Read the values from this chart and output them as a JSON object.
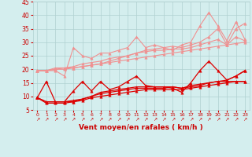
{
  "x": [
    0,
    1,
    2,
    3,
    4,
    5,
    6,
    7,
    8,
    9,
    10,
    11,
    12,
    13,
    14,
    15,
    16,
    17,
    18,
    19,
    20,
    21,
    22,
    23
  ],
  "series": [
    {
      "name": "line1_light_volatile",
      "color": "#f09090",
      "linewidth": 0.8,
      "marker": "^",
      "markersize": 2.5,
      "y": [
        19.5,
        19.5,
        19.5,
        17.5,
        28.0,
        25.0,
        24.0,
        26.0,
        26.0,
        27.0,
        28.0,
        32.0,
        28.0,
        29.0,
        28.0,
        27.0,
        29.0,
        30.0,
        36.0,
        41.0,
        36.0,
        30.5,
        37.5,
        31.0
      ]
    },
    {
      "name": "line2_light",
      "color": "#f09090",
      "linewidth": 0.8,
      "marker": "^",
      "markersize": 2.5,
      "y": [
        19.5,
        19.5,
        20.5,
        20.5,
        20.5,
        21.0,
        21.5,
        22.0,
        23.0,
        24.0,
        25.0,
        26.0,
        27.0,
        27.5,
        28.0,
        28.5,
        28.0,
        29.0,
        30.0,
        32.0,
        35.0,
        29.0,
        35.0,
        37.0
      ]
    },
    {
      "name": "line3_light",
      "color": "#f09090",
      "linewidth": 0.8,
      "marker": "^",
      "markersize": 2.5,
      "y": [
        19.5,
        19.5,
        20.0,
        20.5,
        21.0,
        22.0,
        22.5,
        23.0,
        24.0,
        24.5,
        25.0,
        26.0,
        26.5,
        27.0,
        27.0,
        27.5,
        27.5,
        28.0,
        29.0,
        30.0,
        31.0,
        29.0,
        32.0,
        30.5
      ]
    },
    {
      "name": "line4_light_flat",
      "color": "#f09090",
      "linewidth": 0.8,
      "marker": "^",
      "markersize": 2.5,
      "y": [
        19.5,
        19.5,
        20.0,
        20.0,
        20.5,
        21.0,
        21.5,
        22.0,
        22.5,
        23.0,
        23.5,
        24.0,
        24.5,
        25.0,
        25.5,
        26.0,
        26.5,
        27.0,
        27.5,
        28.0,
        28.5,
        29.0,
        29.5,
        30.0
      ]
    },
    {
      "name": "line5_red_main",
      "color": "#dd0000",
      "linewidth": 0.9,
      "marker": "^",
      "markersize": 2.5,
      "y": [
        9.5,
        15.5,
        8.0,
        8.0,
        12.0,
        15.5,
        12.0,
        15.5,
        12.5,
        13.5,
        15.5,
        17.5,
        14.0,
        13.5,
        13.5,
        13.0,
        11.5,
        15.0,
        19.5,
        23.0,
        19.5,
        16.0,
        17.5,
        19.5
      ]
    },
    {
      "name": "line6_red_flat",
      "color": "#dd0000",
      "linewidth": 0.9,
      "marker": "^",
      "markersize": 2.5,
      "y": [
        9.5,
        8.0,
        8.0,
        8.0,
        8.5,
        9.0,
        10.0,
        11.5,
        12.0,
        12.5,
        13.0,
        13.5,
        13.5,
        13.5,
        13.5,
        13.5,
        13.0,
        14.0,
        14.5,
        15.0,
        15.5,
        15.5,
        15.5,
        15.5
      ]
    },
    {
      "name": "line7_red_low",
      "color": "#dd0000",
      "linewidth": 0.9,
      "marker": "^",
      "markersize": 2.5,
      "y": [
        9.5,
        8.0,
        8.0,
        8.0,
        8.0,
        9.0,
        10.0,
        11.0,
        11.5,
        12.0,
        12.5,
        13.0,
        13.0,
        13.0,
        13.0,
        13.5,
        13.0,
        13.5,
        14.0,
        15.0,
        15.5,
        16.0,
        17.5,
        19.5
      ]
    },
    {
      "name": "line8_red_lowest",
      "color": "#dd0000",
      "linewidth": 0.9,
      "marker": "^",
      "markersize": 2.5,
      "y": [
        9.5,
        7.5,
        7.5,
        7.5,
        8.0,
        8.5,
        9.5,
        10.0,
        10.5,
        11.0,
        11.5,
        12.0,
        12.5,
        12.5,
        12.5,
        12.5,
        12.5,
        13.0,
        13.5,
        14.0,
        14.5,
        15.0,
        15.5,
        15.5
      ]
    }
  ],
  "xlabel": "Vent moyen/en rafales ( km/h )",
  "xlim": [
    -0.5,
    23.5
  ],
  "ylim": [
    5,
    45
  ],
  "yticks": [
    5,
    10,
    15,
    20,
    25,
    30,
    35,
    40,
    45
  ],
  "xticks": [
    0,
    1,
    2,
    3,
    4,
    5,
    6,
    7,
    8,
    9,
    10,
    11,
    12,
    13,
    14,
    15,
    16,
    17,
    18,
    19,
    20,
    21,
    22,
    23
  ],
  "bg_color": "#d4eeee",
  "grid_color": "#b0d0d0",
  "xlabel_color": "#cc0000",
  "tick_color": "#cc0000",
  "arrow_symbol": "↗"
}
